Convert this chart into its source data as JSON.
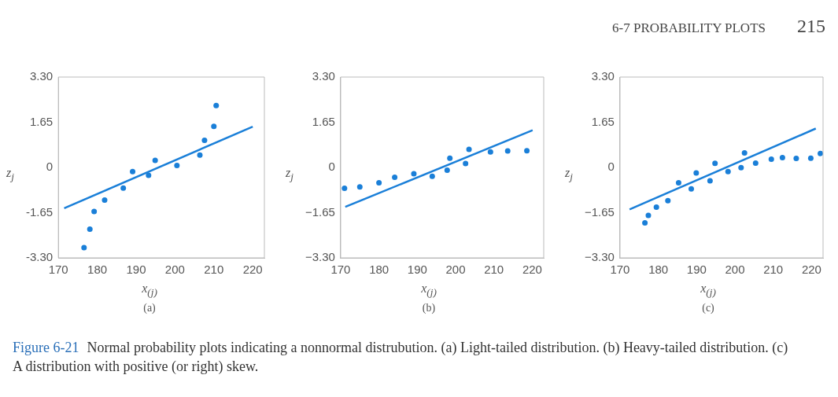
{
  "chart_data": [
    {
      "type": "scatter",
      "subtitle": "(a)",
      "xlabel": "x$_{(j)}$",
      "ylabel": "z$_{j}$",
      "marker": "circle",
      "xlim": [
        170,
        223
      ],
      "ylim": [
        -3.3,
        3.3
      ],
      "xticks": [
        170,
        180,
        190,
        200,
        210,
        220
      ],
      "yticks": [
        {
          "value": -3.3,
          "label": "-3.30"
        },
        {
          "value": -1.65,
          "label": "-1.65"
        },
        {
          "value": 0,
          "label": "0"
        },
        {
          "value": 1.65,
          "label": "1.65"
        },
        {
          "value": 3.3,
          "label": "3.30"
        }
      ],
      "annotations": [
        "Figure 6-21",
        "Normal probability plots indicating a nonnormal distrubution. (a) Light-tailed distribution. (b) Heavy-tailed distribution. (c) A distribution with positive (or right) skew."
      ],
      "series": [
        {
          "color": "#1a7fd8",
          "x": [
            176.6,
            178.1,
            179.2,
            181.9,
            186.7,
            189.1,
            193.2,
            194.9,
            200.5,
            206.4,
            207.6,
            210.0,
            210.6
          ],
          "values": [
            -2.93,
            -2.25,
            -1.61,
            -1.19,
            -0.75,
            -0.15,
            -0.29,
            0.26,
            0.07,
            0.45,
            0.99,
            1.5,
            2.26
          ]
        },
        {
          "type": "line",
          "marker": "none",
          "color": "#1a7fd8",
          "x": [
            171.5,
            220
          ],
          "values": [
            -1.49,
            1.49
          ]
        }
      ]
    },
    {
      "type": "scatter",
      "subtitle": "(b)",
      "xlabel": "x$_{(j)}$",
      "ylabel": "z$_{j}$",
      "marker": "circle",
      "xlim": [
        170,
        223
      ],
      "ylim": [
        -3.3,
        3.3
      ],
      "xticks": [
        170,
        180,
        190,
        200,
        210,
        220
      ],
      "yticks": [
        {
          "value": -3.3,
          "label": "−3.30"
        },
        {
          "value": -1.65,
          "label": "−1.65"
        },
        0,
        {
          "value": 1.65,
          "label": "1.65"
        },
        {
          "value": 3.3,
          "label": "3.30"
        }
      ],
      "series": [
        {
          "color": "#1a7fd8",
          "x": [
            171.0,
            175.0,
            180.0,
            184.1,
            189.1,
            193.9,
            197.8,
            198.5,
            202.6,
            203.5,
            209.1,
            213.6,
            218.6
          ],
          "values": [
            -0.76,
            -0.71,
            -0.56,
            -0.36,
            -0.23,
            -0.32,
            -0.1,
            0.34,
            0.14,
            0.66,
            0.57,
            0.6,
            0.61
          ]
        },
        {
          "type": "line",
          "marker": "none",
          "color": "#1a7fd8",
          "x": [
            171.2,
            220.1
          ],
          "values": [
            -1.44,
            1.36
          ]
        }
      ]
    },
    {
      "type": "scatter",
      "subtitle": "(c)",
      "xlabel": "x$_{(j)}$",
      "ylabel": "z$_{j}$",
      "marker": "circle",
      "xlim": [
        170,
        223
      ],
      "ylim": [
        -3.3,
        3.3
      ],
      "xticks": [
        170,
        180,
        190,
        200,
        210,
        220
      ],
      "yticks": [
        {
          "value": -3.3,
          "label": "−3.30"
        },
        {
          "value": -1.65,
          "label": "−1.65"
        },
        0,
        {
          "value": 1.65,
          "label": "1.65"
        },
        {
          "value": 3.3,
          "label": "3.30"
        }
      ],
      "annotations": [
        "6-7 PROBABILITY PLOTS",
        "215"
      ],
      "series": [
        {
          "color": "#1a7fd8",
          "x": [
            176.5,
            177.4,
            179.5,
            182.5,
            185.3,
            188.6,
            189.9,
            193.5,
            194.8,
            198.2,
            201.6,
            202.5,
            205.4,
            209.5,
            212.4,
            216.0,
            219.8,
            222.3
          ],
          "values": [
            -2.02,
            -1.75,
            -1.45,
            -1.21,
            -0.56,
            -0.78,
            -0.2,
            -0.49,
            0.15,
            -0.15,
            -0.01,
            0.53,
            0.16,
            0.3,
            0.36,
            0.33,
            0.34,
            0.51
          ]
        },
        {
          "type": "line",
          "marker": "none",
          "color": "#1a7fd8",
          "x": [
            172.5,
            221.1
          ],
          "values": [
            -1.53,
            1.42
          ]
        }
      ]
    }
  ]
}
